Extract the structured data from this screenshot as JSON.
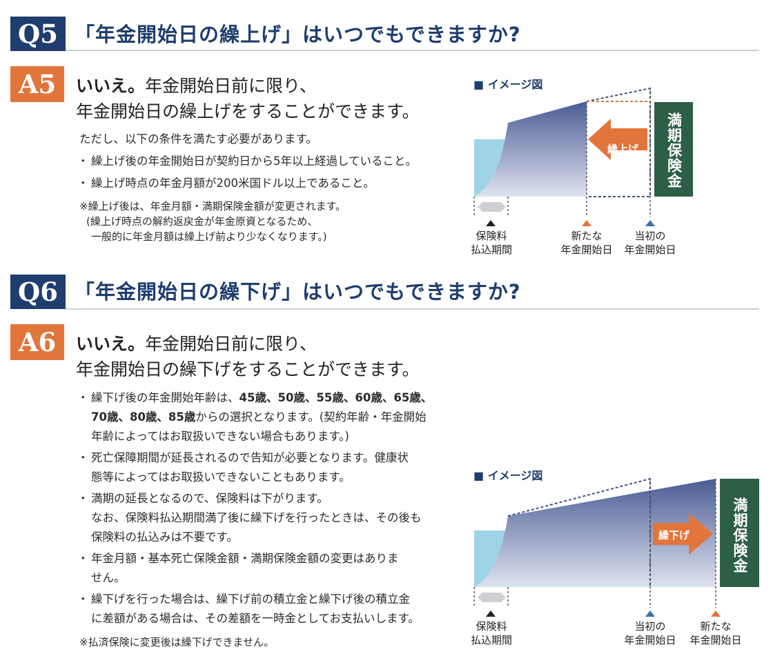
{
  "q5": {
    "badge": "Q5",
    "title": "「年金開始日の繰上げ」はいつでもできますか?"
  },
  "a5": {
    "badge": "A5",
    "heading_bold": "いいえ。",
    "heading_rest": "年金開始日前に限り、",
    "heading_line2": "年金開始日の繰上げをすることができます。",
    "intro": "ただし、以下の条件を満たす必要があります。",
    "bullets": [
      "繰上げ後の年金開始日が契約日から5年以上経過していること。",
      "繰上げ時点の年金月額が200米国ドル以上であること。"
    ],
    "notes": [
      "※繰上げ後は、年金月額・満期保険金額が変更されます。",
      "(繰上げ時点の解約返戻金が年金原資となるため、",
      "一般的に年金月額は繰上げ前より少なくなります。)"
    ]
  },
  "chart5": {
    "image_label": "■ イメージ図",
    "arrow_label": "繰上げ",
    "maturity_label": "満期保険金",
    "label_premium": [
      "保険料",
      "払込期間"
    ],
    "label_new": [
      "新たな",
      "年金開始日"
    ],
    "label_original": [
      "当初の",
      "年金開始日"
    ]
  },
  "q6": {
    "badge": "Q6",
    "title": "「年金開始日の繰下げ」はいつでもできますか?"
  },
  "a6": {
    "badge": "A6",
    "heading_bold": "いいえ。",
    "heading_rest": "年金開始日前に限り、",
    "heading_line2": "年金開始日の繰下げをすることができます。",
    "b1": {
      "pre": "繰下げ後の年金開始年齢は、",
      "ages1": "45歳、50歳、55歳、60歳、65歳、",
      "ages2": "70歳、80歳、85歳",
      "post": "からの選択となります。(契約年齢・年金開始",
      "line3": "年齢によってはお取扱いできない場合もあります。)"
    },
    "b2": [
      "死亡保障期間が延長されるので告知が必要となります。健康状",
      "態等によってはお取扱いできないこともあります。"
    ],
    "b3": [
      "満期の延長となるので、保険料は下がります。",
      "なお、保険料払込期間満了後に繰下げを行ったときは、その後も",
      "保険料の払込みは不要です。"
    ],
    "b4": [
      "年金月額・基本死亡保険金額・満期保険金額の変更はありま",
      "せん。"
    ],
    "b5": [
      "繰下げを行った場合は、繰下げ前の積立金と繰下げ後の積立金",
      "に差額がある場合は、その差額を一時金としてお支払いします。"
    ],
    "note": "※払済保険に変更後は繰下げできません。",
    "bullet_mark": "・"
  },
  "chart6": {
    "image_label": "■ イメージ図",
    "arrow_label": "繰下げ",
    "maturity_label": "満期保険金",
    "label_premium": [
      "保険料",
      "払込期間"
    ],
    "label_original": [
      "当初の",
      "年金開始日"
    ],
    "label_new": [
      "新たな",
      "年金開始日"
    ]
  },
  "colors": {
    "navy": "#1f3d6e",
    "orange": "#e2753a",
    "green": "#2d5e46",
    "lightblue": "#9fd3e8",
    "area_dark": "#4a5c94",
    "area_light": "#dfe3ef",
    "triangle_blue": "#3b72a8"
  }
}
